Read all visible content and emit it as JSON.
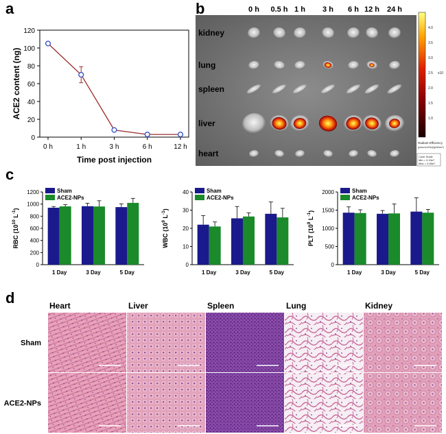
{
  "panel_labels": {
    "a": "a",
    "b": "b",
    "c": "c",
    "d": "d"
  },
  "chart_data": [
    {
      "type": "line",
      "x": [
        "0 h",
        "1 h",
        "3 h",
        "6 h",
        "12 h"
      ],
      "values": [
        105,
        70,
        8,
        3,
        3
      ],
      "errors": [
        0,
        9,
        1.5,
        0.8,
        0.8
      ],
      "xlabel": "Time post injection",
      "ylabel": "ACE2 content (ng)",
      "ylim": [
        0,
        120
      ],
      "yticks": [
        0,
        20,
        40,
        60,
        80,
        100,
        120
      ],
      "line_color": "#9a2c2c",
      "marker_color": "#3a57c8"
    },
    {
      "type": "bar",
      "categories": [
        "1 Day",
        "3 Day",
        "5 Day"
      ],
      "series": [
        {
          "name": "Sham",
          "values": [
            940,
            965,
            950
          ],
          "errors": [
            20,
            50,
            55
          ],
          "color": "#1a1a8c"
        },
        {
          "name": "ACE2-NPs",
          "values": [
            962,
            960,
            1020
          ],
          "errors": [
            28,
            95,
            75
          ],
          "color": "#1a8a2a"
        }
      ],
      "ylabel_main": "RBC (10",
      "ylabel_sup": "10",
      "ylabel_tail": " L",
      "ylabel_sup2": "-1",
      "ylabel_end": ")",
      "ylim": [
        0,
        1200
      ],
      "yticks": [
        0,
        200,
        400,
        600,
        800,
        1000,
        1200
      ]
    },
    {
      "type": "bar",
      "categories": [
        "1 Day",
        "3 Day",
        "5 Day"
      ],
      "series": [
        {
          "name": "Sham",
          "values": [
            22,
            25.5,
            28
          ],
          "errors": [
            5,
            6.5,
            6.5
          ],
          "color": "#1a1a8c"
        },
        {
          "name": "ACE2-NPs",
          "values": [
            21,
            26.5,
            26
          ],
          "errors": [
            2.5,
            2,
            5
          ],
          "color": "#1a8a2a"
        }
      ],
      "ylabel_main": "WBC (10",
      "ylabel_sup": "9",
      "ylabel_tail": " L",
      "ylabel_sup2": "-1",
      "ylabel_end": ")",
      "ylim": [
        0,
        40
      ],
      "yticks": [
        0,
        10,
        20,
        30,
        40
      ]
    },
    {
      "type": "bar",
      "categories": [
        "1 Day",
        "3 Day",
        "5 Day"
      ],
      "series": [
        {
          "name": "Sham",
          "values": [
            1430,
            1400,
            1460
          ],
          "errors": [
            160,
            90,
            380
          ],
          "color": "#1a1a8c"
        },
        {
          "name": "ACE2-NPs",
          "values": [
            1420,
            1410,
            1430
          ],
          "errors": [
            90,
            260,
            90
          ],
          "color": "#1a8a2a"
        }
      ],
      "ylabel_main": "PLT (10",
      "ylabel_sup": "9",
      "ylabel_tail": " L",
      "ylabel_sup2": "-1",
      "ylabel_end": ")",
      "ylim": [
        0,
        2000
      ],
      "yticks": [
        0,
        500,
        1000,
        1500,
        2000
      ]
    }
  ],
  "imaging": {
    "times": [
      "0 h",
      "0.5 h",
      "1 h",
      "3 h",
      "6 h",
      "12 h",
      "24 h"
    ],
    "organs": [
      "kidney",
      "lung",
      "spleen",
      "liver",
      "heart"
    ],
    "colorbar_ticks": [
      "4.0",
      "3.5",
      "3.0",
      "2.5",
      "2.0",
      "1.5",
      "1.0"
    ],
    "colorbar_title": "Radiant Efficiency",
    "colorbar_sub": "(p/sec/cm²/sr)/(µW/cm²)",
    "colorbar_exp": "x10",
    "color_scale": [
      "Color Scale",
      "Min = 3.19e7",
      "Max = 4.65e7"
    ],
    "signal": {
      "lung": [
        0,
        0,
        0,
        0.7,
        0,
        0.5,
        0
      ],
      "liver": [
        0,
        0.8,
        0.7,
        1.0,
        0.8,
        0.75,
        0.6
      ]
    }
  },
  "histology": {
    "columns": [
      "Heart",
      "Liver",
      "Spleen",
      "Lung",
      "Kidney"
    ],
    "rows": [
      "Sham",
      "ACE2-NPs"
    ]
  }
}
